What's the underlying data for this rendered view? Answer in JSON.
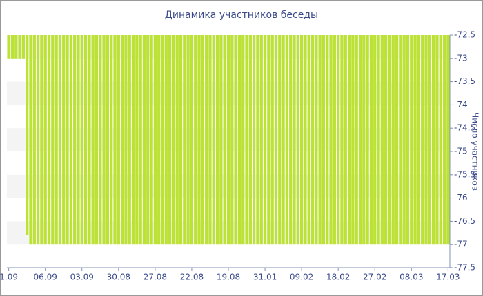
{
  "chart_data": {
    "type": "bar",
    "title": "Динамика участников беседы",
    "y_axis_label": "Число участников",
    "categories": [
      "1.09",
      null,
      null,
      null,
      null,
      null,
      null,
      null,
      null,
      null,
      "06.09",
      null,
      null,
      null,
      null,
      null,
      null,
      null,
      null,
      null,
      "03.09",
      null,
      null,
      null,
      null,
      null,
      null,
      null,
      null,
      null,
      "30.08",
      null,
      null,
      null,
      null,
      null,
      null,
      null,
      null,
      null,
      "27.08",
      null,
      null,
      null,
      null,
      null,
      null,
      null,
      null,
      null,
      "22.08",
      null,
      null,
      null,
      null,
      null,
      null,
      null,
      null,
      null,
      "19.08",
      null,
      null,
      null,
      null,
      null,
      null,
      null,
      null,
      null,
      "31.01",
      null,
      null,
      null,
      null,
      null,
      null,
      null,
      null,
      null,
      "09.02",
      null,
      null,
      null,
      null,
      null,
      null,
      null,
      null,
      null,
      "18.02",
      null,
      null,
      null,
      null,
      null,
      null,
      null,
      null,
      null,
      "27.02",
      null,
      null,
      null,
      null,
      null,
      null,
      null,
      null,
      null,
      "08.03",
      null,
      null,
      null,
      null,
      null,
      null,
      null,
      null,
      null,
      "17.03"
    ],
    "values": [
      -73,
      -73,
      -73,
      -73,
      -73,
      -76.8,
      -77,
      -77,
      -77,
      -77,
      -77,
      -77,
      -77,
      -77,
      -77,
      -77,
      -77,
      -77,
      -77,
      -77,
      -77,
      -77,
      -77,
      -77,
      -77,
      -77,
      -77,
      -77,
      -77,
      -77,
      -77,
      -77,
      -77,
      -77,
      -77,
      -77,
      -77,
      -77,
      -77,
      -77,
      -77,
      -77,
      -77,
      -77,
      -77,
      -77,
      -77,
      -77,
      -77,
      -77,
      -77,
      -77,
      -77,
      -77,
      -77,
      -77,
      -77,
      -77,
      -77,
      -77,
      -77,
      -77,
      -77,
      -77,
      -77,
      -77,
      -77,
      -77,
      -77,
      -77,
      -77,
      -77,
      -77,
      -77,
      -77,
      -77,
      -77,
      -77,
      -77,
      -77,
      -77,
      -77,
      -77,
      -77,
      -77,
      -77,
      -77,
      -77,
      -77,
      -77,
      -77,
      -77,
      -77,
      -77,
      -77,
      -77,
      -77,
      -77,
      -77,
      -77,
      -77,
      -77,
      -77,
      -77,
      -77,
      -77,
      -77,
      -77,
      -77,
      -77,
      -77,
      -77,
      -77,
      -77,
      -77,
      -77,
      -77,
      -77,
      -77,
      -77,
      -77
    ],
    "color": "#bde236",
    "ylim": [
      -77.5,
      -72.5
    ],
    "yticks": [
      -72.5,
      -73,
      -73.5,
      -74,
      -74.5,
      -75,
      -75.5,
      -76,
      -76.5,
      -77,
      -77.5
    ],
    "grid": "alternating-bands"
  }
}
